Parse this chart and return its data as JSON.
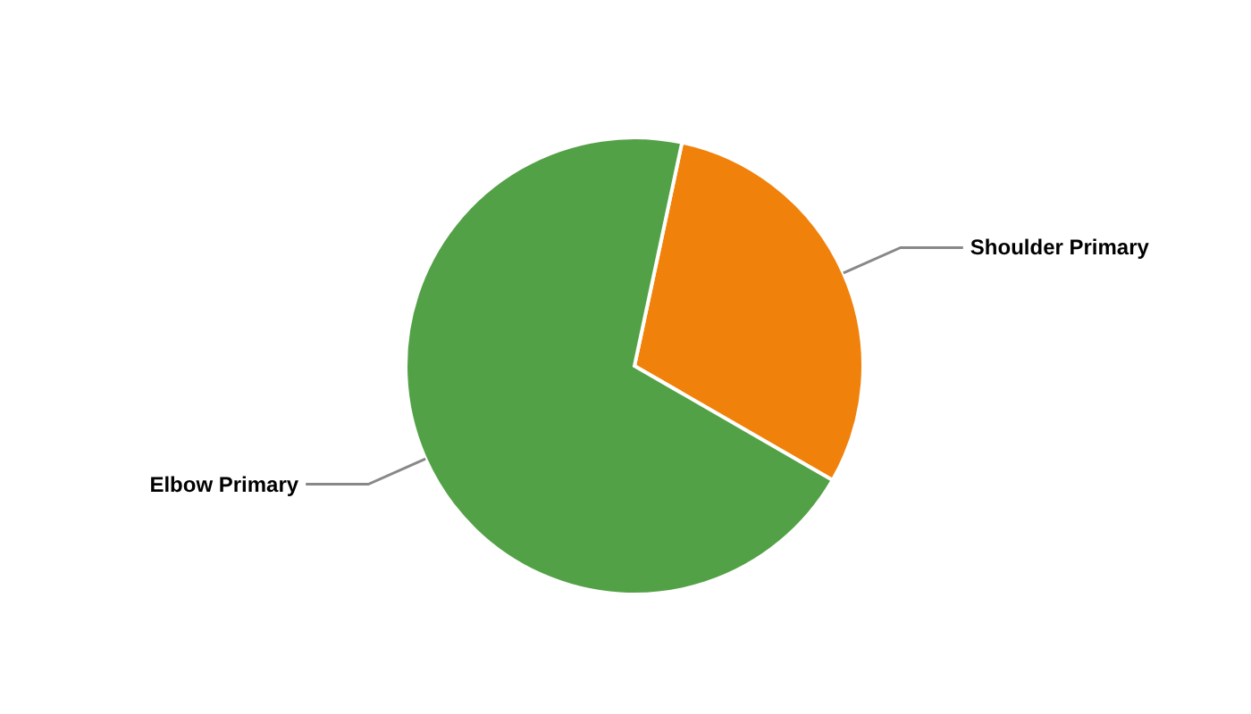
{
  "chart_data": {
    "type": "pie",
    "categories": [
      "Shoulder Primary",
      "Elbow Primary"
    ],
    "values": [
      30,
      70
    ],
    "colors": [
      "#f0820c",
      "#53a146"
    ]
  }
}
